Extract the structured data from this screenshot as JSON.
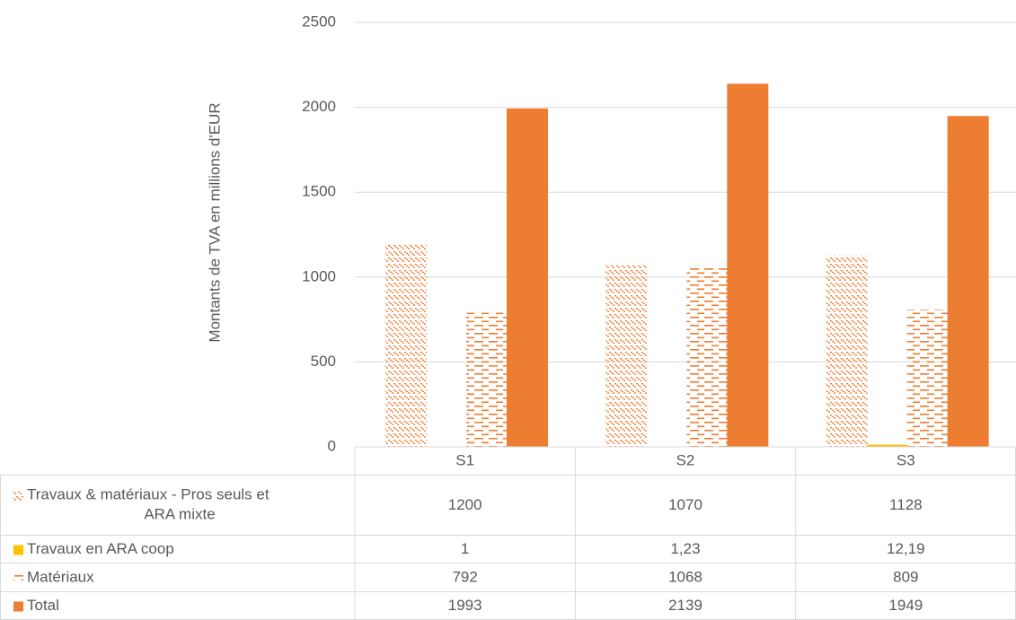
{
  "chart_data": {
    "type": "bar",
    "ylabel": "Montants de TVA en millions d'EUR",
    "ylim": [
      0,
      2500
    ],
    "yticks": [
      "0",
      "500",
      "1000",
      "1500",
      "2000",
      "2500"
    ],
    "grid": true,
    "legend": "data-table",
    "categories": [
      "S1",
      "S2",
      "S3"
    ],
    "series": [
      {
        "name": "Travaux & matériaux - Pros seuls et ARA mixte",
        "values": [
          1200,
          1070,
          1128
        ],
        "labels": [
          "1200",
          "1070",
          "1128"
        ],
        "color": "#ED7D31",
        "pattern": "dotted"
      },
      {
        "name": "Travaux en ARA coop",
        "values": [
          1,
          1.23,
          12.19
        ],
        "labels": [
          "1",
          "1,23",
          "12,19"
        ],
        "color": "#FFC000",
        "pattern": "solid"
      },
      {
        "name": "Matériaux",
        "values": [
          792,
          1068,
          809
        ],
        "labels": [
          "792",
          "1068",
          "809"
        ],
        "color": "#ED7D31",
        "pattern": "dashed"
      },
      {
        "name": "Total",
        "values": [
          1993,
          2139,
          1949
        ],
        "labels": [
          "1993",
          "2139",
          "1949"
        ],
        "color": "#ED7D31",
        "pattern": "solid"
      }
    ]
  }
}
